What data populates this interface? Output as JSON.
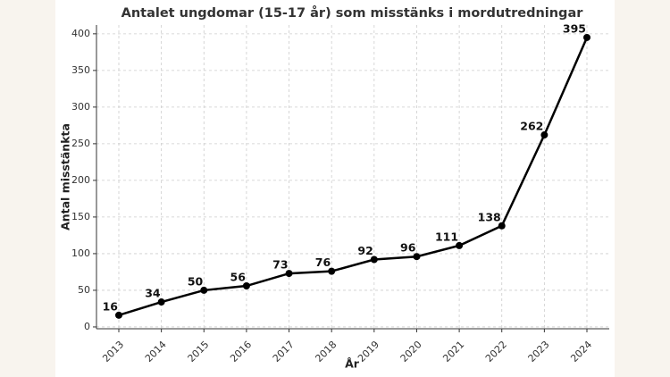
{
  "chart_data": {
    "type": "line",
    "title": "Antalet ungdomar (15-17 år) som misstänks i mordutredningar",
    "x_label": "År",
    "y_label": "Antal misstänkta",
    "categories": [
      "2013",
      "2014",
      "2015",
      "2016",
      "2017",
      "2018",
      "2019",
      "2020",
      "2021",
      "2022",
      "2023",
      "2024"
    ],
    "series": [
      {
        "color": "#000000",
        "values": [
          16,
          34,
          50,
          56,
          73,
          76,
          92,
          96,
          111,
          138,
          262,
          395
        ]
      }
    ],
    "ylim": [
      -2.5,
      412
    ],
    "yticks": [
      0,
      50,
      100,
      150,
      200,
      250,
      300,
      350,
      400
    ],
    "grid": true
  }
}
